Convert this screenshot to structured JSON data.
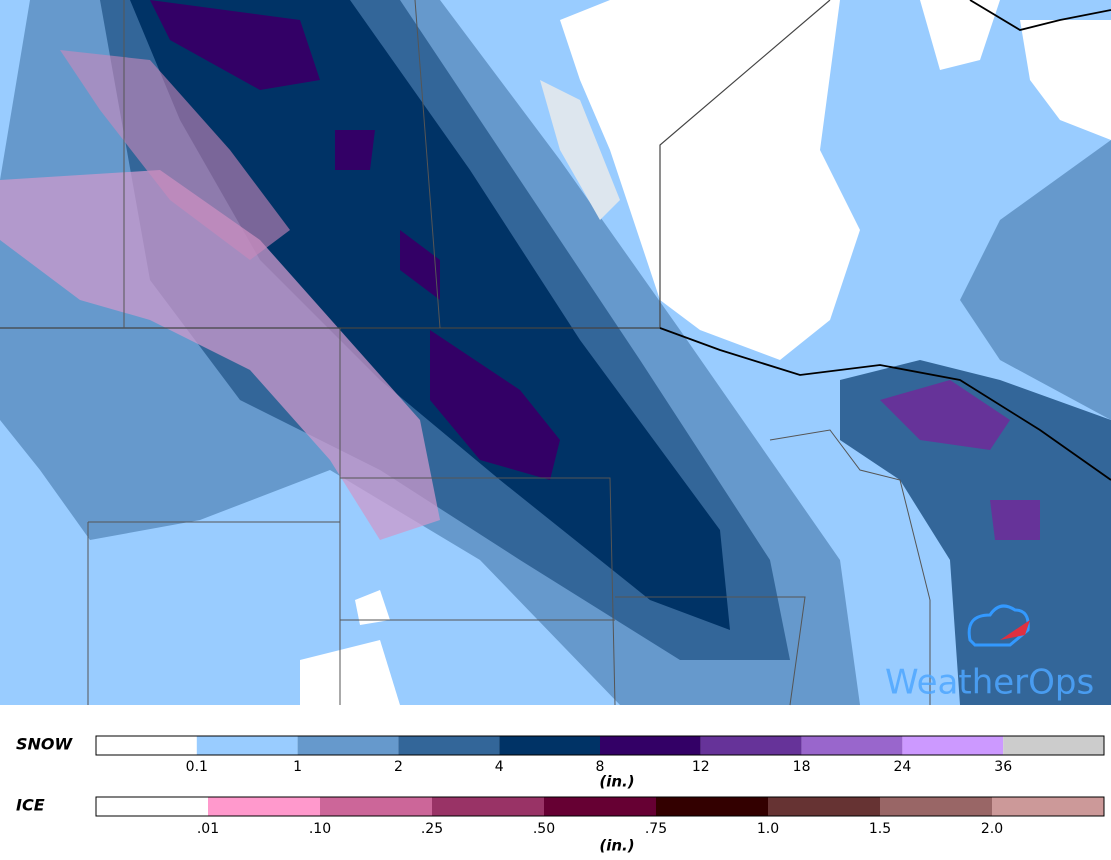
{
  "map": {
    "logo": "WeatherOps"
  },
  "legend": {
    "snow": {
      "title": "SNOW",
      "unit": "(in.)",
      "colors": [
        "#ffffff",
        "#99ccff",
        "#6699cc",
        "#336699",
        "#003366",
        "#330066",
        "#663399",
        "#9966cc",
        "#cc99ff",
        "#cccccc"
      ],
      "labels": [
        "0.1",
        "1",
        "2",
        "4",
        "8",
        "12",
        "18",
        "24",
        "36"
      ]
    },
    "ice": {
      "title": "ICE",
      "unit": "(in.)",
      "colors": [
        "#ffffff",
        "#ff99cc",
        "#cc6699",
        "#993366",
        "#660033",
        "#330000",
        "#663333",
        "#996666",
        "#cc9999"
      ],
      "labels": [
        ".01",
        ".10",
        ".25",
        ".50",
        ".75",
        "1.0",
        "1.5",
        "2.0"
      ]
    }
  }
}
